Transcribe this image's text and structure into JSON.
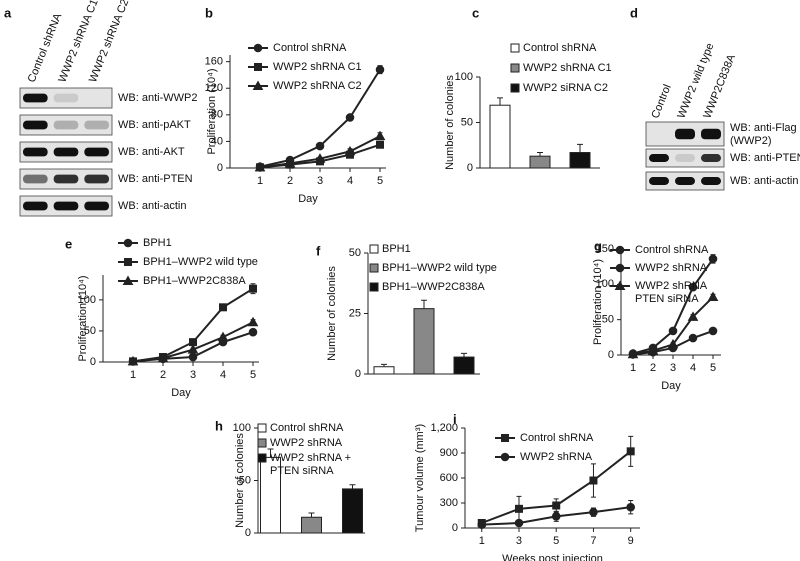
{
  "blots": [
    {
      "panel": "a",
      "lanes": [
        "Control shRNA",
        "WWP2 shRNA C1",
        "WWP2 shRNA C2"
      ],
      "rows": [
        "WB: anti-WWP2",
        "WB: anti-pAKT",
        "WB: anti-AKT",
        "WB: anti-PTEN",
        "WB: anti-actin"
      ]
    },
    {
      "panel": "d",
      "lanes": [
        "Control",
        "WWP2 wild type",
        "WWP2C838A"
      ],
      "rows": [
        "WB: anti-Flag\n(WWP2)",
        "WB: anti-PTEN",
        "WB: anti-actin"
      ]
    }
  ],
  "chart_data": [
    {
      "type": "line",
      "panel": "b",
      "xlabel": "Day",
      "ylabel": "Proliferation (10⁴)",
      "x": [
        1,
        2,
        3,
        4,
        5
      ],
      "xlim": [
        0,
        5.2
      ],
      "xticks": [
        1,
        2,
        3,
        4,
        5
      ],
      "ylim": [
        0,
        170
      ],
      "yticks": [
        0,
        40,
        80,
        120,
        160
      ],
      "series": [
        {
          "name": "Control shRNA",
          "color": "#222222",
          "marker": "circle",
          "values": [
            2,
            12,
            33,
            76,
            148
          ],
          "errors": [
            1,
            2,
            3,
            4,
            6
          ]
        },
        {
          "name": "WWP2 shRNA C1",
          "color": "#222222",
          "marker": "square",
          "values": [
            1,
            5,
            10,
            20,
            35
          ],
          "errors": [
            1,
            1,
            2,
            3,
            5
          ]
        },
        {
          "name": "WWP2 shRNA C2",
          "color": "#222222",
          "marker": "triangle",
          "values": [
            1,
            7,
            14,
            25,
            48
          ],
          "errors": [
            1,
            1,
            2,
            4,
            5
          ]
        }
      ]
    },
    {
      "type": "bar",
      "panel": "c",
      "ylabel": "Number of colonies",
      "categories": [
        null
      ],
      "ylim": [
        0,
        100
      ],
      "yticks": [
        0,
        50,
        100
      ],
      "series": [
        {
          "name": "Control shRNA",
          "color": "#ffffff",
          "values": [
            69
          ],
          "errors": [
            8
          ]
        },
        {
          "name": "WWP2 shRNA C1",
          "color": "#888888",
          "values": [
            13
          ],
          "errors": [
            4
          ]
        },
        {
          "name": "WWP2 siRNA C2",
          "color": "#111111",
          "values": [
            17
          ],
          "errors": [
            9
          ]
        }
      ]
    },
    {
      "type": "line",
      "panel": "e",
      "xlabel": "Day",
      "ylabel": "Proliferation (10⁴)",
      "x": [
        1,
        2,
        3,
        4,
        5
      ],
      "xlim": [
        0,
        5.2
      ],
      "xticks": [
        1,
        2,
        3,
        4,
        5
      ],
      "ylim": [
        0,
        140
      ],
      "yticks": [
        0,
        50,
        100
      ],
      "series": [
        {
          "name": "BPH1",
          "color": "#222222",
          "marker": "circle",
          "values": [
            1,
            5,
            8,
            32,
            48
          ],
          "errors": [
            1,
            1,
            1,
            3,
            4
          ]
        },
        {
          "name": "BPH1–WWP2 wild type",
          "color": "#222222",
          "marker": "square",
          "values": [
            1,
            8,
            32,
            88,
            118
          ],
          "errors": [
            1,
            1,
            2,
            4,
            8
          ]
        },
        {
          "name": "BPH1–WWP2C838A",
          "color": "#222222",
          "marker": "triangle",
          "values": [
            1,
            6,
            20,
            40,
            64
          ],
          "errors": [
            1,
            1,
            2,
            3,
            4
          ]
        }
      ]
    },
    {
      "type": "bar",
      "panel": "f",
      "ylabel": "Number of colonies",
      "categories": [
        null
      ],
      "ylim": [
        0,
        50
      ],
      "yticks": [
        0,
        25,
        50
      ],
      "series": [
        {
          "name": "BPH1",
          "color": "#ffffff",
          "values": [
            3
          ],
          "errors": [
            1
          ]
        },
        {
          "name": "BPH1–WWP2 wild type",
          "color": "#888888",
          "values": [
            27
          ],
          "errors": [
            3.5
          ]
        },
        {
          "name": "BPH1–WWP2C838A",
          "color": "#111111",
          "values": [
            7
          ],
          "errors": [
            1.5
          ]
        }
      ]
    },
    {
      "type": "line",
      "panel": "g",
      "xlabel": "Day",
      "ylabel": "Proliferation (10⁴)",
      "x": [
        1,
        2,
        3,
        4,
        5
      ],
      "xlim": [
        0.4,
        5.4
      ],
      "xticks": [
        1,
        2,
        3,
        4,
        5
      ],
      "ylim": [
        0,
        150
      ],
      "yticks": [
        0,
        50,
        100,
        150
      ],
      "series": [
        {
          "name": "Control shRNA",
          "color": "#222222",
          "marker": "circle",
          "values": [
            2,
            10,
            34,
            96,
            136
          ],
          "errors": [
            1,
            1,
            2,
            4,
            6
          ]
        },
        {
          "name": "WWP2 shRNA",
          "color": "#222222",
          "marker": "circle",
          "values": [
            1,
            4,
            10,
            24,
            34
          ],
          "errors": [
            1,
            1,
            1,
            2,
            4
          ]
        },
        {
          "name": "WWP2 shRNA\nPTEN siRNA",
          "color": "#222222",
          "marker": "triangle",
          "values": [
            1,
            6,
            15,
            54,
            82
          ],
          "errors": [
            1,
            1,
            2,
            3,
            4
          ]
        }
      ]
    },
    {
      "type": "bar",
      "panel": "h",
      "ylabel": "Number of colonies",
      "categories": [
        null
      ],
      "ylim": [
        0,
        100
      ],
      "yticks": [
        0,
        50,
        100
      ],
      "series": [
        {
          "name": "Control shRNA",
          "color": "#ffffff",
          "values": [
            72
          ],
          "errors": [
            8
          ]
        },
        {
          "name": "WWP2 shRNA",
          "color": "#888888",
          "values": [
            15
          ],
          "errors": [
            4
          ]
        },
        {
          "name": "WWP2 shRNA +\nPTEN siRNA",
          "color": "#111111",
          "values": [
            42
          ],
          "errors": [
            4
          ]
        }
      ]
    },
    {
      "type": "line",
      "panel": "i",
      "xlabel": "Weeks post injection",
      "ylabel": "Tumour volume (mm³)",
      "x": [
        1,
        3,
        5,
        7,
        9
      ],
      "xlim": [
        0.1,
        9.5
      ],
      "xticks": [
        1,
        3,
        5,
        7,
        9
      ],
      "ylim": [
        0,
        1200
      ],
      "yticks": [
        0,
        300,
        600,
        900,
        {
          "value": 1200,
          "label": "1,200"
        }
      ],
      "series": [
        {
          "name": "Control shRNA",
          "color": "#222222",
          "marker": "square",
          "values": [
            60,
            230,
            270,
            570,
            920
          ],
          "errors": [
            30,
            150,
            80,
            200,
            180
          ]
        },
        {
          "name": "WWP2 shRNA",
          "color": "#222222",
          "marker": "circle",
          "values": [
            40,
            60,
            140,
            190,
            250
          ],
          "errors": [
            10,
            20,
            60,
            50,
            80
          ]
        }
      ]
    }
  ]
}
